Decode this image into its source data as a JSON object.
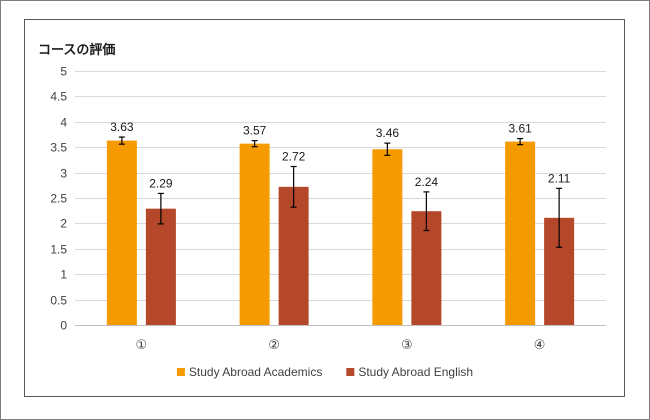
{
  "chart_data": {
    "type": "bar",
    "title": "コースの評価",
    "categories": [
      "①",
      "②",
      "③",
      "④"
    ],
    "ylim": [
      0,
      5
    ],
    "yticks": [
      "0",
      "0.5",
      "1",
      "1.5",
      "2",
      "2.5",
      "3",
      "3.5",
      "4",
      "4.5",
      "5"
    ],
    "grid": true,
    "legend_position": "bottom",
    "series": [
      {
        "name": "Study Abroad Academics",
        "color": "#f59a00",
        "values": [
          3.63,
          3.57,
          3.46,
          3.61
        ],
        "labels": [
          "3.63",
          "3.57",
          "3.46",
          "3.61"
        ],
        "error": [
          0.07,
          0.06,
          0.12,
          0.06
        ]
      },
      {
        "name": "Study Abroad English",
        "color": "#b5472b",
        "values": [
          2.29,
          2.72,
          2.24,
          2.11
        ],
        "labels": [
          "2.29",
          "2.72",
          "2.24",
          "2.11"
        ],
        "error": [
          0.3,
          0.4,
          0.38,
          0.58
        ]
      }
    ]
  }
}
